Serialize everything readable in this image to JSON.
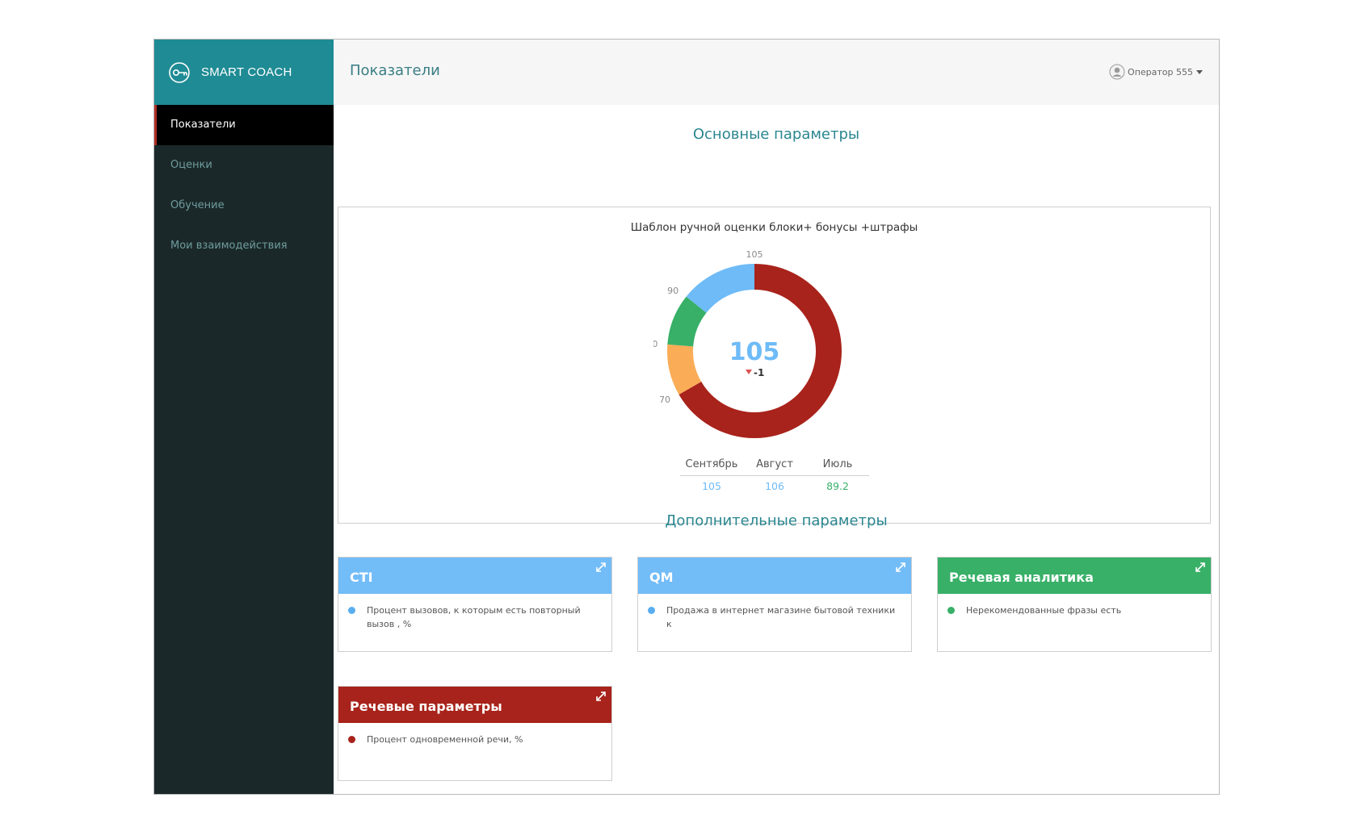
{
  "app": {
    "brand": "SMART COACH"
  },
  "sidebar": {
    "items": [
      {
        "label": "Показатели",
        "active": true
      },
      {
        "label": "Оценки",
        "active": false
      },
      {
        "label": "Обучение",
        "active": false
      },
      {
        "label": "Мои взаимодействия",
        "active": false
      }
    ]
  },
  "header": {
    "title": "Показатели",
    "user": "Оператор 555"
  },
  "main": {
    "primary_title": "Основные параметры",
    "secondary_title": "Дополнительные параметры"
  },
  "chart_data": {
    "type": "donut",
    "title": "Шаблон ручной оценки блоки+ бонусы +штрафы",
    "center_value": "105",
    "delta": "-1",
    "delta_direction": "down",
    "scale_ticks": [
      70,
      80,
      90,
      105
    ],
    "bands": [
      {
        "from": 0,
        "to": 70,
        "color": "#a8231b"
      },
      {
        "from": 70,
        "to": 80,
        "color": "#fbac57"
      },
      {
        "from": 80,
        "to": 90,
        "color": "#38b068"
      },
      {
        "from": 90,
        "to": 105,
        "color": "#6ebbf7"
      }
    ],
    "months": [
      {
        "name": "Сентябрь",
        "value": "105",
        "color": "#6ebbf7"
      },
      {
        "name": "Август",
        "value": "106",
        "color": "#6ebbf7"
      },
      {
        "name": "Июль",
        "value": "89.2",
        "color": "#38b068"
      }
    ]
  },
  "cards": [
    {
      "title": "CTI",
      "color": "#72bcf8",
      "dot_color": "#5aaef0",
      "item": "Процент вызовов, к которым есть повторный вызов , %"
    },
    {
      "title": "QM",
      "color": "#72bcf8",
      "dot_color": "#5aaef0",
      "item": "Продажа в интернет магазине бытовой техники к"
    },
    {
      "title": "Речевая аналитика",
      "color": "#38b068",
      "dot_color": "#38b068",
      "item": "Нерекомендованные фразы есть"
    },
    {
      "title": "Речевые параметры",
      "color": "#a8231b",
      "dot_color": "#a8231b",
      "item": "Процент одновременной речи, %"
    }
  ]
}
